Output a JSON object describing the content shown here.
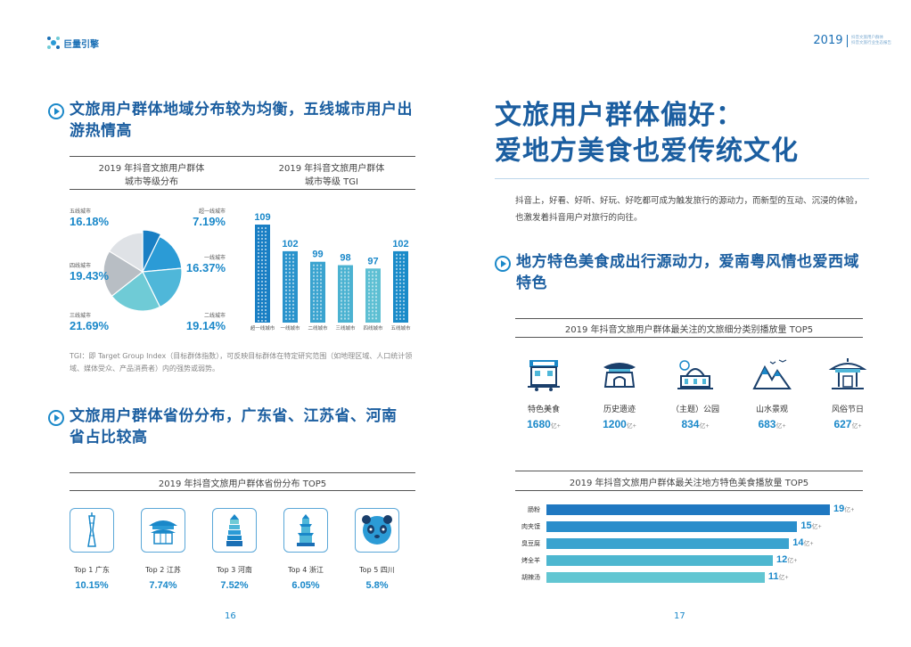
{
  "header": {
    "logo_text": "巨量引擎",
    "year": "2019",
    "subtitle_line1": "抖音文旅用户群体",
    "subtitle_line2": "抖音文旅行业生态报告"
  },
  "left": {
    "title1": "文旅用户群体地域分布较为均衡，五线城市用户出游热情高",
    "pie_caption_line1": "2019 年抖音文旅用户群体",
    "pie_caption_line2": "城市等级分布",
    "tgi_caption_line1": "2019 年抖音文旅用户群体",
    "tgi_caption_line2": "城市等级 TGI",
    "pie_labels": [
      {
        "name": "五线城市",
        "value": "16.18%"
      },
      {
        "name": "超一线城市",
        "value": "7.19%"
      },
      {
        "name": "一线城市",
        "value": "16.37%"
      },
      {
        "name": "四线城市",
        "value": "19.43%"
      },
      {
        "name": "三线城市",
        "value": "21.69%"
      },
      {
        "name": "二线城市",
        "value": "19.14%"
      }
    ],
    "note": "TGI：即 Target Group Index（目标群体指数），可反映目标群体在特定研究范围（如地理区域、人口统计领域、媒体受众、产品消费者）内的强势或弱势。",
    "title2": "文旅用户群体省份分布，广东省、江苏省、河南省占比较高",
    "province_caption": "2019 年抖音文旅用户群体省份分布 TOP5",
    "provinces": [
      {
        "label": "Top 1  广东",
        "value": "10.15%"
      },
      {
        "label": "Top 2  江苏",
        "value": "7.74%"
      },
      {
        "label": "Top 3  河南",
        "value": "7.52%"
      },
      {
        "label": "Top 4  浙江",
        "value": "6.05%"
      },
      {
        "label": "Top 5  四川",
        "value": "5.8%"
      }
    ],
    "page_number": "16"
  },
  "right": {
    "headline_line1": "文旅用户群体偏好：",
    "headline_line2": "爱地方美食也爱传统文化",
    "intro": "抖音上，好看、好听、好玩、好吃都可成为触发旅行的源动力，而新型的互动、沉浸的体验，也激发着抖音用户对旅行的向往。",
    "title3": "地方特色美食成出行源动力，爱南粤风情也爱西域特色",
    "category_caption": "2019 年抖音文旅用户群体最关注的文旅细分类别播放量 TOP5",
    "categories": [
      {
        "label": "特色美食",
        "value": "1680",
        "unit": "亿+"
      },
      {
        "label": "历史遗迹",
        "value": "1200",
        "unit": "亿+"
      },
      {
        "label": "（主题）公园",
        "value": "834",
        "unit": "亿+"
      },
      {
        "label": "山水景观",
        "value": "683",
        "unit": "亿+"
      },
      {
        "label": "风俗节日",
        "value": "627",
        "unit": "亿+"
      }
    ],
    "food_caption": "2019 年抖音文旅用户群体最关注地方特色美食播放量 TOP5",
    "page_number": "17"
  },
  "chart_data": [
    {
      "type": "pie",
      "title": "2019 年抖音文旅用户群体城市等级分布",
      "categories": [
        "超一线城市",
        "一线城市",
        "二线城市",
        "三线城市",
        "四线城市",
        "五线城市"
      ],
      "values": [
        7.19,
        16.37,
        19.14,
        21.69,
        19.43,
        16.18
      ],
      "colors": [
        "#1a7fc4",
        "#2b9bd6",
        "#4fb7d9",
        "#6fcbd6",
        "#b8bec4",
        "#dfe2e6"
      ]
    },
    {
      "type": "bar",
      "title": "2019 年抖音文旅用户群体城市等级 TGI",
      "categories": [
        "超一线城市",
        "一线城市",
        "二线城市",
        "三线城市",
        "四线城市",
        "五线城市"
      ],
      "values": [
        109,
        102,
        99,
        98,
        97,
        102
      ],
      "ylim": [
        0,
        109
      ]
    },
    {
      "type": "bar",
      "orientation": "horizontal",
      "title": "2019 年抖音文旅用户群体最关注地方特色美食播放量 TOP5",
      "categories": [
        "肠粉",
        "肉夹馍",
        "臭豆腐",
        "烤全羊",
        "胡辣汤"
      ],
      "values": [
        19,
        15,
        14,
        12,
        11
      ],
      "unit": "亿+",
      "colors": [
        "#1f78c1",
        "#2a8ecb",
        "#3aa3cf",
        "#4db7d0",
        "#62c6d2"
      ]
    }
  ]
}
